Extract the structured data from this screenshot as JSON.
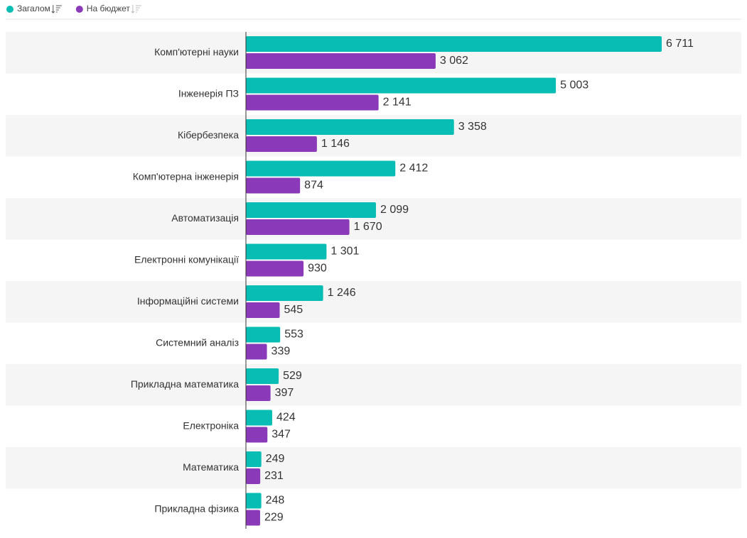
{
  "chart_data": {
    "type": "hbar",
    "categories": [
      "Комп'ютерні науки",
      "Інженерія ПЗ",
      "Кібербезпека",
      "Комп'ютерна інженерія",
      "Автоматизація",
      "Електронні комунікації",
      "Інформаційні системи",
      "Системний аналіз",
      "Прикладна математика",
      "Електроніка",
      "Математика",
      "Прикладна фізика"
    ],
    "series": [
      {
        "name": "Загалом",
        "color": "#08bdb3",
        "values": [
          6711,
          5003,
          3358,
          2412,
          2099,
          1301,
          1246,
          553,
          529,
          424,
          249,
          248
        ],
        "value_labels": [
          "6 711",
          "5 003",
          "3 358",
          "2 412",
          "2 099",
          "1 301",
          "1 246",
          "553",
          "529",
          "424",
          "249",
          "248"
        ]
      },
      {
        "name": "На бюджет",
        "color": "#8a3ab9",
        "values": [
          3062,
          2141,
          1146,
          874,
          1670,
          930,
          545,
          339,
          397,
          347,
          231,
          229
        ],
        "value_labels": [
          "3 062",
          "2 141",
          "1 146",
          "874",
          "1 670",
          "930",
          "545",
          "339",
          "397",
          "347",
          "231",
          "229"
        ]
      }
    ],
    "legend": "top-left"
  }
}
